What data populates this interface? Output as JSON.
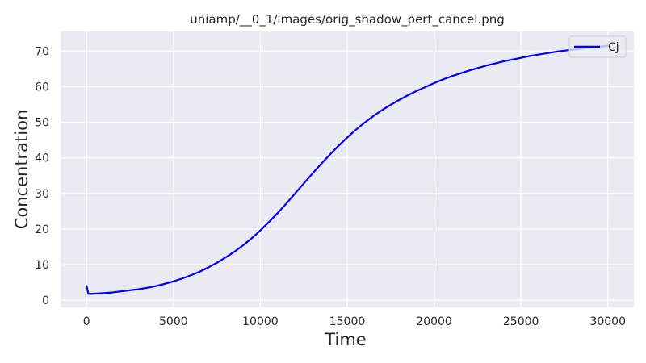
{
  "chart_data": {
    "type": "line",
    "title": "uniamp/__0_1/images/orig_shadow_pert_cancel.png",
    "xlabel": "Time",
    "ylabel": "Concentration",
    "xlim": [
      -1500,
      31500
    ],
    "ylim": [
      -2,
      75.5
    ],
    "xticks": [
      0,
      5000,
      10000,
      15000,
      20000,
      25000,
      30000
    ],
    "yticks": [
      0,
      10,
      20,
      30,
      40,
      50,
      60,
      70
    ],
    "grid": true,
    "legend_position": "top-right",
    "series": [
      {
        "name": "Cj",
        "color": "#0000ff",
        "x": [
          0,
          100,
          250,
          500,
          1000,
          1500,
          2000,
          2500,
          3000,
          3500,
          4000,
          4500,
          5000,
          5500,
          6000,
          6500,
          7000,
          7500,
          8000,
          8500,
          9000,
          9500,
          10000,
          10500,
          11000,
          11500,
          12000,
          12500,
          13000,
          13500,
          14000,
          14500,
          15000,
          15500,
          16000,
          16500,
          17000,
          17500,
          18000,
          18500,
          19000,
          19500,
          20000,
          20500,
          21000,
          21500,
          22000,
          22500,
          23000,
          23500,
          24000,
          24500,
          25000,
          25500,
          26000,
          26500,
          27000,
          27500,
          28000,
          28500,
          29000,
          29500,
          30000
        ],
        "values": [
          4.0,
          1.8,
          1.8,
          1.85,
          2.0,
          2.2,
          2.5,
          2.8,
          3.1,
          3.5,
          4.0,
          4.6,
          5.3,
          6.1,
          7.0,
          8.0,
          9.2,
          10.5,
          12.0,
          13.6,
          15.4,
          17.4,
          19.6,
          22.0,
          24.5,
          27.2,
          30.0,
          32.8,
          35.6,
          38.3,
          40.9,
          43.4,
          45.7,
          47.9,
          49.9,
          51.7,
          53.4,
          54.9,
          56.3,
          57.6,
          58.8,
          59.9,
          61.0,
          62.0,
          62.9,
          63.7,
          64.5,
          65.2,
          65.9,
          66.5,
          67.1,
          67.6,
          68.1,
          68.6,
          69.0,
          69.4,
          69.8,
          70.1,
          70.4,
          70.7,
          71.0,
          71.2,
          71.5
        ]
      }
    ]
  }
}
